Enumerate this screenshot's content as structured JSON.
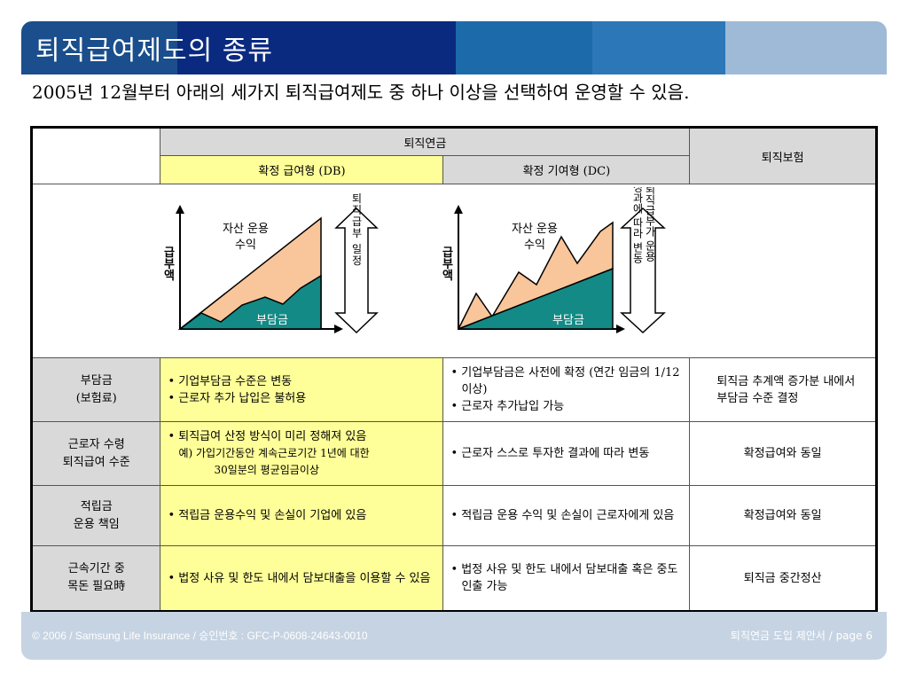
{
  "colors": {
    "title_segments": [
      "#1a4e8c",
      "#0a2a80",
      "#1d6aaa",
      "#2b77b8",
      "#9fbad6"
    ],
    "table_header_gray": "#d9d9d9",
    "db_highlight": "#ffff99",
    "asset_return_fill": "#f9c59a",
    "contribution_fill": "#138a85",
    "footer_bg": "#c6d3e2"
  },
  "title": "퇴직급여제도의 종류",
  "subtitle": "2005년 12월부터 아래의 세가지 퇴직급여제도 중 하나 이상을 선택하여 운영할 수 있음.",
  "table": {
    "header_pension": "퇴직연금",
    "header_db": "확정 급여형 (DB)",
    "header_dc": "확정 기여형 (DC)",
    "header_insurance": "퇴직보험",
    "diagram_db": {
      "ylabel": "급부액",
      "asset_label_1": "자산 운용",
      "asset_label_2": "수익",
      "contribution_label": "부담금",
      "arrow_text": "퇴직급부 일정"
    },
    "diagram_dc": {
      "ylabel": "급부액",
      "asset_label_1": "자산 운용",
      "asset_label_2": "수익",
      "contribution_label": "부담금",
      "arrow_text_left": "성과에 따라 변동",
      "arrow_text_right": "퇴직급부가 운용"
    },
    "rows": [
      {
        "label_1": "부담금",
        "label_2": "(보험료)",
        "db": [
          "• 기업부담금 수준은 변동",
          "• 근로자 추가 납입은 불허용"
        ],
        "dc": [
          "• 기업부담금은 사전에 확정 (연간 임금의 1/12이상)",
          "• 근로자 추가납입 가능"
        ],
        "insurance": "퇴직금 추계액 증가분 내에서 부담금 수준 결정"
      },
      {
        "label_1": "근로자 수령",
        "label_2": "퇴직급여 수준",
        "db": [
          "• 퇴직급여 산정 방식이 미리 정해져 있음"
        ],
        "db_note_1": "예) 가입기간동안 계속근로기간 1년에 대한",
        "db_note_2": "30일분의 평균임금이상",
        "dc": [
          "• 근로자 스스로 투자한 결과에 따라 변동"
        ],
        "insurance": "확정급여와 동일"
      },
      {
        "label_1": "적립금",
        "label_2": "운용 책임",
        "db": [
          "• 적립금 운용수익 및 손실이 기업에 있음"
        ],
        "dc": [
          "• 적립금 운용 수익 및 손실이 근로자에게 있음"
        ],
        "insurance": "확정급여와 동일"
      },
      {
        "label_1": "근속기간 중",
        "label_2": "목돈 필요時",
        "db": [
          "• 법정 사유 및 한도 내에서 담보대출을 이용할 수 있음"
        ],
        "dc": [
          "• 법정 사유 및 한도 내에서 담보대출 혹은 중도인출 가능"
        ],
        "insurance": "퇴직금 중간정산"
      }
    ]
  },
  "footer": {
    "left": "© 2006 / Samsung Life Insurance / 승인번호 : GFC-P-0608-24643-0010",
    "right": "퇴직연금 도입 제안서  /  page 6"
  }
}
